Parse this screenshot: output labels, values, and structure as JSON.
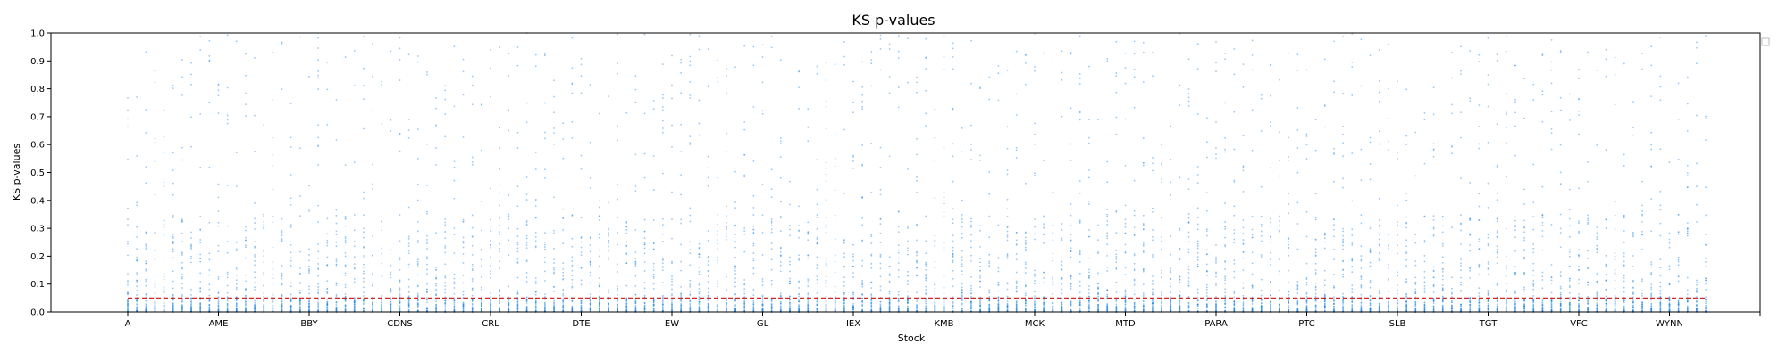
{
  "chart_data": {
    "type": "scatter",
    "title": "KS p-values",
    "xlabel": "Stock",
    "ylabel": "KS p-values",
    "ylim": [
      0.0,
      1.0
    ],
    "yticks": [
      "0.0",
      "0.1",
      "0.2",
      "0.3",
      "0.4",
      "0.5",
      "0.6",
      "0.7",
      "0.8",
      "0.9",
      "1.0"
    ],
    "xticks": [
      "A",
      "AME",
      "BBY",
      "CDNS",
      "CRL",
      "DTE",
      "EW",
      "GL",
      "IEX",
      "KMB",
      "MCK",
      "MTD",
      "PARA",
      "PTC",
      "SLB",
      "TGT",
      "VFC",
      "WYNN",
      ""
    ],
    "x_category_count": 175,
    "x_category_step_per_tick": 10,
    "threshold": 0.05,
    "threshold_color": "#d62728",
    "point_color": "#1e88e5",
    "grid": false,
    "legend": "top-right (empty)",
    "series": [
      {
        "values_per_category": 45,
        "distribution": "heavily concentrated below 0.1 with sparse spread up to 1.0"
      }
    ]
  }
}
